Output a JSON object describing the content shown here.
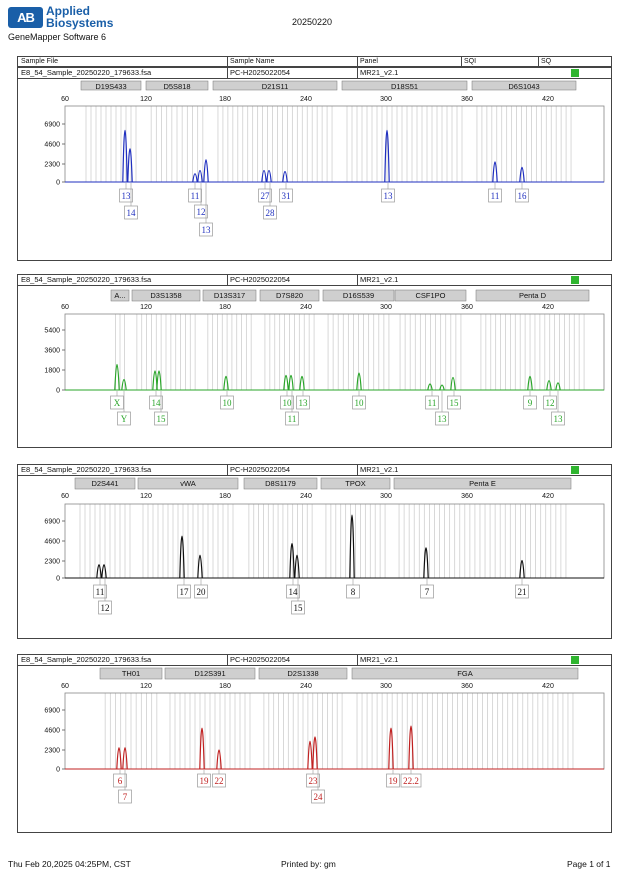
{
  "header": {
    "logo_text": "AB",
    "brand_line1": "Applied",
    "brand_line2": "Biosystems",
    "software": "GeneMapper Software 6",
    "date": "20250220"
  },
  "table_header": {
    "sample_file": "Sample File",
    "sample_name": "Sample Name",
    "panel": "Panel",
    "sqi": "SQI",
    "sq": "SQ"
  },
  "x_ticks": [
    "60",
    "120",
    "180",
    "240",
    "300",
    "360",
    "420"
  ],
  "panels": [
    {
      "file": "E8_54_Sample_20250220_179633.fsa",
      "name": "PC-H2025022054",
      "panel": "MR21_v2.1",
      "color": "#1f2fbf",
      "y_ticks": [
        "6900",
        "4600",
        "2300",
        "0"
      ],
      "markers": [
        {
          "label": "D19S433",
          "a": 80,
          "b": 140
        },
        {
          "label": "D5S818",
          "a": 145,
          "b": 207
        },
        {
          "label": "D21S11",
          "a": 212,
          "b": 336
        },
        {
          "label": "D18S51",
          "a": 341,
          "b": 466
        },
        {
          "label": "D6S1043",
          "a": 471,
          "b": 575
        }
      ],
      "calls": [
        {
          "row": 0,
          "label": "13"
        },
        {
          "row": 1,
          "label": "14"
        },
        {
          "row": 0,
          "label": "11"
        },
        {
          "row": 1,
          "label": "12"
        },
        {
          "row": 2,
          "label": "13"
        },
        {
          "row": 0,
          "label": "27"
        },
        {
          "row": 1,
          "label": "28"
        },
        {
          "row": 0,
          "label": "31"
        },
        {
          "row": 0,
          "label": "13"
        },
        {
          "row": 0,
          "label": "11"
        },
        {
          "row": 0,
          "label": "16"
        }
      ]
    },
    {
      "file": "E8_54_Sample_20250220_179633.fsa",
      "name": "PC-H2025022054",
      "panel": "MR21_v2.1",
      "color": "#2aa52a",
      "y_ticks": [
        "5400",
        "3600",
        "1800",
        "0"
      ],
      "markers": [
        {
          "label": "A...",
          "a": 110,
          "b": 128
        },
        {
          "label": "D3S1358",
          "a": 131,
          "b": 199
        },
        {
          "label": "D13S317",
          "a": 202,
          "b": 255
        },
        {
          "label": "D7S820",
          "a": 259,
          "b": 318
        },
        {
          "label": "D16S539",
          "a": 322,
          "b": 393
        },
        {
          "label": "CSF1PO",
          "a": 394,
          "b": 465
        },
        {
          "label": "Penta D",
          "a": 475,
          "b": 588
        }
      ],
      "calls": [
        {
          "row": 0,
          "label": "X"
        },
        {
          "row": 1,
          "label": "Y"
        },
        {
          "row": 0,
          "label": "14"
        },
        {
          "row": 1,
          "label": "15"
        },
        {
          "row": 0,
          "label": "10"
        },
        {
          "row": 0,
          "label": "10"
        },
        {
          "row": 1,
          "label": "11"
        },
        {
          "row": 0,
          "label": "13"
        },
        {
          "row": 0,
          "label": "10"
        },
        {
          "row": 0,
          "label": "11"
        },
        {
          "row": 1,
          "label": "13"
        },
        {
          "row": 0,
          "label": "15"
        },
        {
          "row": 0,
          "label": "9"
        },
        {
          "row": 0,
          "label": "12"
        },
        {
          "row": 1,
          "label": "13"
        }
      ]
    },
    {
      "file": "E8_54_Sample_20250220_179633.fsa",
      "name": "PC-H2025022054",
      "panel": "MR21_v2.1",
      "color": "#111111",
      "y_ticks": [
        "6900",
        "4600",
        "2300",
        "0"
      ],
      "markers": [
        {
          "label": "D2S441",
          "a": 74,
          "b": 134
        },
        {
          "label": "vWA",
          "a": 137,
          "b": 237
        },
        {
          "label": "D8S1179",
          "a": 243,
          "b": 316
        },
        {
          "label": "TPOX",
          "a": 320,
          "b": 389
        },
        {
          "label": "Penta E",
          "a": 393,
          "b": 570
        }
      ],
      "calls": [
        {
          "row": 0,
          "label": "11"
        },
        {
          "row": 1,
          "label": "12"
        },
        {
          "row": 0,
          "label": "17"
        },
        {
          "row": 0,
          "label": "20"
        },
        {
          "row": 0,
          "label": "14"
        },
        {
          "row": 1,
          "label": "15"
        },
        {
          "row": 0,
          "label": "8"
        },
        {
          "row": 0,
          "label": "7"
        },
        {
          "row": 0,
          "label": "21"
        }
      ]
    },
    {
      "file": "E8_54_Sample_20250220_179633.fsa",
      "name": "PC-H2025022054",
      "panel": "MR21_v2.1",
      "color": "#c02020",
      "y_ticks": [
        "6900",
        "4600",
        "2300",
        "0"
      ],
      "markers": [
        {
          "label": "TH01",
          "a": 99,
          "b": 161
        },
        {
          "label": "D12S391",
          "a": 164,
          "b": 254
        },
        {
          "label": "D2S1338",
          "a": 258,
          "b": 346
        },
        {
          "label": "FGA",
          "a": 351,
          "b": 577
        }
      ],
      "calls": [
        {
          "row": 0,
          "label": "6"
        },
        {
          "row": 1,
          "label": "7"
        },
        {
          "row": 0,
          "label": "19"
        },
        {
          "row": 0,
          "label": "22"
        },
        {
          "row": 0,
          "label": "23"
        },
        {
          "row": 1,
          "label": "24"
        },
        {
          "row": 0,
          "label": "19"
        },
        {
          "row": 0,
          "label": "22.2"
        }
      ]
    }
  ],
  "footer": {
    "timestamp": "Thu Feb 20,2025 04:25PM, CST",
    "printed_by": "Printed by: gm",
    "page": "Page 1 of 1"
  }
}
